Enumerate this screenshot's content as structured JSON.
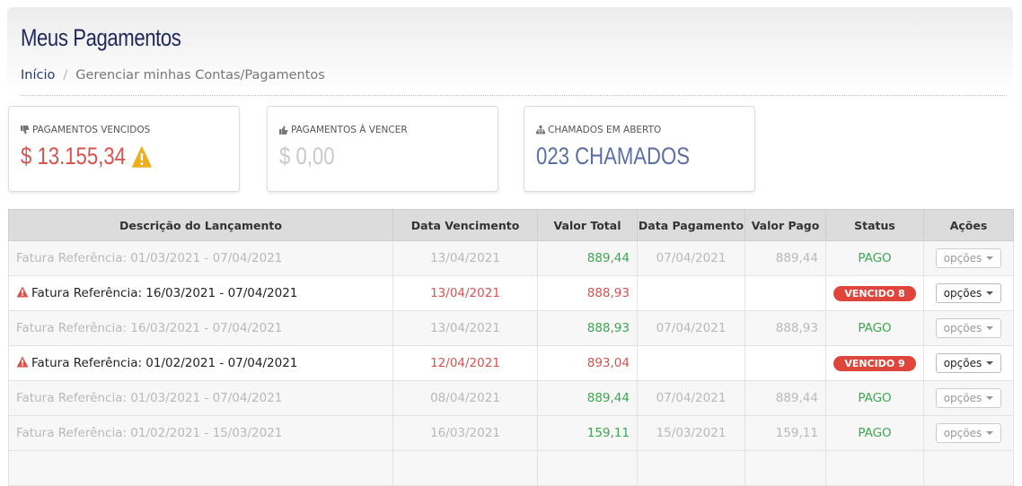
{
  "header": {
    "title": "Meus Pagamentos",
    "breadcrumb": {
      "home": "Início",
      "current": "Gerenciar minhas Contas/Pagamentos"
    }
  },
  "stats": [
    {
      "label": "PAGAMENTOS VENCIDOS",
      "value": "$ 13.155,34",
      "icon": "thumbs-down-icon",
      "warning": true,
      "color": "#d9534f"
    },
    {
      "label": "PAGAMENTOS À VENCER",
      "value": "$ 0,00",
      "icon": "thumbs-up-icon",
      "warning": false,
      "color": "#c9c9c9"
    },
    {
      "label": "CHAMADOS EM ABERTO",
      "value": "023 CHAMADOS",
      "icon": "sitemap-icon",
      "warning": false,
      "color": "#5b6ea6"
    }
  ],
  "table": {
    "columns": [
      "Descrição do Lançamento",
      "Data Vencimento",
      "Valor Total",
      "Data Pagamento",
      "Valor Pago",
      "Status",
      "Ações"
    ],
    "rows": [
      {
        "state": "paid",
        "description": "Fatura Referência: 01/03/2021 - 07/04/2021",
        "due_date": "13/04/2021",
        "total": "889,44",
        "paid_date": "07/04/2021",
        "paid_value": "889,44",
        "status": "PAGO",
        "action": "opções"
      },
      {
        "state": "overdue",
        "description": "Fatura Referência: 16/03/2021 - 07/04/2021",
        "due_date": "13/04/2021",
        "total": "888,93",
        "paid_date": "",
        "paid_value": "",
        "status": "VENCIDO 8",
        "action": "opções"
      },
      {
        "state": "paid",
        "description": "Fatura Referência: 16/03/2021 - 07/04/2021",
        "due_date": "13/04/2021",
        "total": "888,93",
        "paid_date": "07/04/2021",
        "paid_value": "888,93",
        "status": "PAGO",
        "action": "opções"
      },
      {
        "state": "overdue",
        "description": "Fatura Referência: 01/02/2021 - 07/04/2021",
        "due_date": "12/04/2021",
        "total": "893,04",
        "paid_date": "",
        "paid_value": "",
        "status": "VENCIDO 9",
        "action": "opções"
      },
      {
        "state": "paid",
        "description": "Fatura Referência: 01/03/2021 - 07/04/2021",
        "due_date": "08/04/2021",
        "total": "889,44",
        "paid_date": "07/04/2021",
        "paid_value": "889,44",
        "status": "PAGO",
        "action": "opções"
      },
      {
        "state": "paid",
        "description": "Fatura Referência: 01/02/2021 - 15/03/2021",
        "due_date": "16/03/2021",
        "total": "159,11",
        "paid_date": "15/03/2021",
        "paid_value": "159,11",
        "status": "PAGO",
        "action": "opções"
      },
      {
        "state": "paid",
        "description": "",
        "due_date": "",
        "total": "",
        "paid_date": "",
        "paid_value": "",
        "status": "",
        "action": ""
      }
    ]
  },
  "colors": {
    "paid": "#3aa84f",
    "overdue": "#d9534f",
    "badge": "#e0453c",
    "title": "#1f2a5a"
  }
}
